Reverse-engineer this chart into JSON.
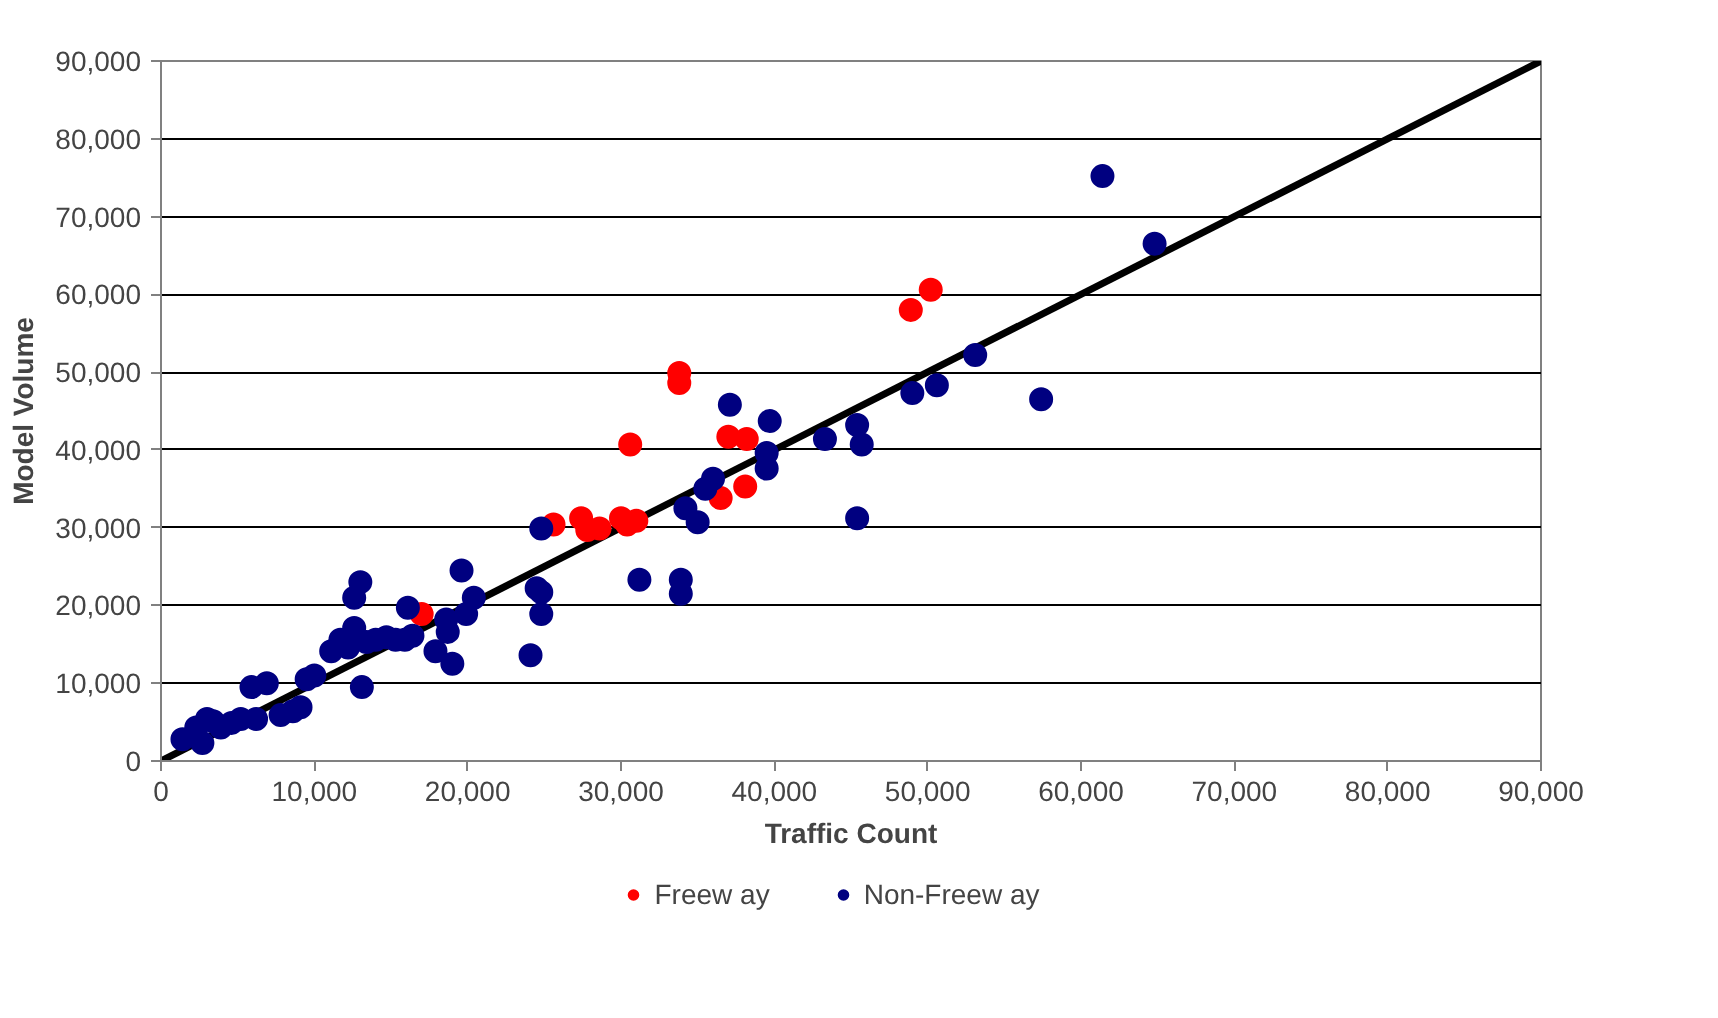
{
  "chart_data": {
    "type": "scatter",
    "xlabel": "Traffic Count",
    "ylabel": "Model Volume",
    "xlim": [
      0,
      90000
    ],
    "ylim": [
      0,
      90000
    ],
    "xticks": [
      {
        "value": 0,
        "label": "0"
      },
      {
        "value": 10000,
        "label": "10,000"
      },
      {
        "value": 20000,
        "label": "20,000"
      },
      {
        "value": 30000,
        "label": "30,000"
      },
      {
        "value": 40000,
        "label": "40,000"
      },
      {
        "value": 50000,
        "label": "50,000"
      },
      {
        "value": 60000,
        "label": "60,000"
      },
      {
        "value": 70000,
        "label": "70,000"
      },
      {
        "value": 80000,
        "label": "80,000"
      },
      {
        "value": 90000,
        "label": "90,000"
      }
    ],
    "yticks": [
      {
        "value": 0,
        "label": "0"
      },
      {
        "value": 10000,
        "label": "10,000"
      },
      {
        "value": 20000,
        "label": "20,000"
      },
      {
        "value": 30000,
        "label": "30,000"
      },
      {
        "value": 40000,
        "label": "40,000"
      },
      {
        "value": 50000,
        "label": "50,000"
      },
      {
        "value": 60000,
        "label": "60,000"
      },
      {
        "value": 70000,
        "label": "70,000"
      },
      {
        "value": 80000,
        "label": "80,000"
      },
      {
        "value": 90000,
        "label": "90,000"
      }
    ],
    "grid": "y",
    "legend": "bottom",
    "marker": "circle",
    "series": [
      {
        "type": "line",
        "color": "#000000",
        "x": [
          0,
          90000
        ],
        "values": [
          0,
          90000
        ],
        "marker": "none",
        "line_style": "solid"
      },
      {
        "name": "Freew ay",
        "color": "#ff0000",
        "x": [
          17000,
          25600,
          27400,
          27800,
          28600,
          30000,
          30400,
          31000,
          30600,
          33800,
          33800,
          36500,
          37000,
          38200,
          38100,
          48900,
          50200
        ],
        "values": [
          18900,
          30400,
          31200,
          29700,
          29900,
          31200,
          30400,
          30900,
          40700,
          49900,
          48600,
          33800,
          41700,
          41400,
          35300,
          58000,
          60600
        ]
      },
      {
        "name": "Non-Freew ay",
        "color": "#000080",
        "x": [
          1400,
          2300,
          2700,
          3000,
          3400,
          3900,
          4600,
          5200,
          5900,
          6200,
          6900,
          7800,
          8600,
          9100,
          9500,
          10000,
          11100,
          11700,
          12200,
          12600,
          12600,
          13000,
          13100,
          13400,
          14000,
          14700,
          15300,
          15900,
          16400,
          16100,
          17900,
          18600,
          18700,
          19000,
          19600,
          19900,
          20400,
          24100,
          24500,
          24800,
          24800,
          24800,
          31200,
          33900,
          33900,
          37100,
          39700,
          39500,
          39500,
          36000,
          35500,
          34200,
          35000,
          61400,
          64800,
          53100,
          50600,
          49000,
          57400,
          45400,
          45700,
          43300,
          45400
        ],
        "values": [
          2800,
          4300,
          2300,
          5400,
          5100,
          4300,
          4900,
          5400,
          9500,
          5400,
          10000,
          5900,
          6400,
          6900,
          10500,
          11000,
          14100,
          15600,
          14600,
          17100,
          21000,
          23000,
          9500,
          15300,
          15600,
          15900,
          15600,
          15600,
          16100,
          19700,
          14100,
          18200,
          16600,
          12500,
          24500,
          18900,
          21000,
          13600,
          22200,
          21700,
          18900,
          29900,
          23300,
          23300,
          21500,
          45800,
          43700,
          39600,
          37600,
          36300,
          35000,
          32500,
          30700,
          75200,
          66500,
          52200,
          48300,
          47300,
          46500,
          43200,
          40700,
          41400,
          31200
        ]
      }
    ]
  }
}
